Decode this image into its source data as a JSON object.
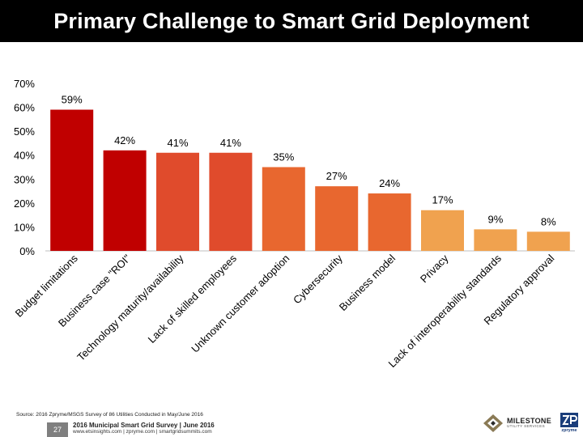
{
  "title": "Primary Challenge to Smart Grid Deployment",
  "chart_data": {
    "type": "bar",
    "title": "Primary Challenge to Smart Grid Deployment",
    "xlabel": "",
    "ylabel": "",
    "ylim": [
      0,
      70
    ],
    "yticks": [
      "0%",
      "10%",
      "20%",
      "30%",
      "40%",
      "50%",
      "60%",
      "70%"
    ],
    "grid": false,
    "categories": [
      "Budget limitations",
      "Business case \"ROI\"",
      "Technology maturity/availability",
      "Lack of skilled employees",
      "Unknown customer adoption",
      "Cybersecurity",
      "Business model",
      "Privacy",
      "Lack of interoperability standards",
      "Regulatory approval"
    ],
    "values": [
      59,
      42,
      41,
      41,
      35,
      27,
      24,
      17,
      9,
      8
    ],
    "value_labels": [
      "59%",
      "42%",
      "41%",
      "41%",
      "35%",
      "27%",
      "24%",
      "17%",
      "9%",
      "8%"
    ],
    "colors": [
      "#c00000",
      "#c00000",
      "#e04b2c",
      "#e04b2c",
      "#e8672f",
      "#e8672f",
      "#e8672f",
      "#f0a24f",
      "#f0a24f",
      "#f0a24f"
    ]
  },
  "footer": {
    "source": "Source: 2016 Zpryme/MSGS Survey of 86 Utilities Conducted in May/June 2016",
    "page_number": "27",
    "survey_title": "2016 Municipal Smart Grid Survey | June 2016",
    "links": "www.etsinsights.com | zpryme.com | smartgridsummits.com"
  },
  "logos": {
    "milestone_name": "MILESTONE",
    "milestone_sub": "UTILITY SERVICES",
    "zpryme_name": "zpryme"
  }
}
